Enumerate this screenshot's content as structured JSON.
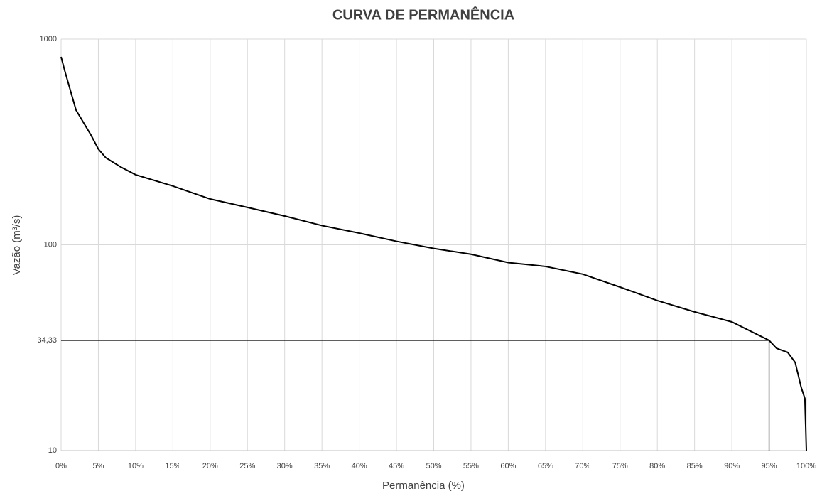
{
  "chart_data": {
    "type": "line",
    "title": "CURVA DE PERMANÊNCIA",
    "xlabel": "Permanência (%)",
    "ylabel": "Vazão (m³/s)",
    "x": [
      0,
      0.5,
      2,
      4,
      5,
      6,
      8,
      10,
      15,
      20,
      25,
      30,
      35,
      40,
      45,
      50,
      55,
      60,
      65,
      70,
      75,
      80,
      85,
      90,
      95,
      96,
      97.5,
      98.5,
      99.3,
      99.8,
      100
    ],
    "series": [
      {
        "name": "Vazão",
        "color": "#000000",
        "values": [
          820,
          700,
          452,
          342,
          292,
          265,
          239,
          219,
          193,
          167,
          152,
          138,
          124,
          114,
          104,
          96,
          90,
          82,
          78.5,
          72,
          62.3,
          53.6,
          47.2,
          42.2,
          34.33,
          31.4,
          30,
          26.8,
          20.3,
          17.9,
          10
        ]
      }
    ],
    "xlim": [
      0,
      100
    ],
    "xticks": [
      {
        "value": 0,
        "label": "0%"
      },
      {
        "value": 5,
        "label": "5%"
      },
      {
        "value": 10,
        "label": "10%"
      },
      {
        "value": 15,
        "label": "15%"
      },
      {
        "value": 20,
        "label": "20%"
      },
      {
        "value": 25,
        "label": "25%"
      },
      {
        "value": 30,
        "label": "30%"
      },
      {
        "value": 35,
        "label": "35%"
      },
      {
        "value": 40,
        "label": "40%"
      },
      {
        "value": 45,
        "label": "45%"
      },
      {
        "value": 50,
        "label": "50%"
      },
      {
        "value": 55,
        "label": "55%"
      },
      {
        "value": 60,
        "label": "60%"
      },
      {
        "value": 65,
        "label": "65%"
      },
      {
        "value": 70,
        "label": "70%"
      },
      {
        "value": 75,
        "label": "75%"
      },
      {
        "value": 80,
        "label": "80%"
      },
      {
        "value": 85,
        "label": "85%"
      },
      {
        "value": 90,
        "label": "90%"
      },
      {
        "value": 95,
        "label": "95%"
      },
      {
        "value": 100,
        "label": "100%"
      }
    ],
    "ylim": [
      10,
      1000
    ],
    "yticks": [
      10,
      {
        "value": 34.33,
        "label": "34,33"
      },
      100,
      1000
    ],
    "ygrid": [
      10,
      100,
      1000
    ],
    "log_y": true,
    "grid": true,
    "reference": {
      "x": 95,
      "y": 34.33
    }
  }
}
